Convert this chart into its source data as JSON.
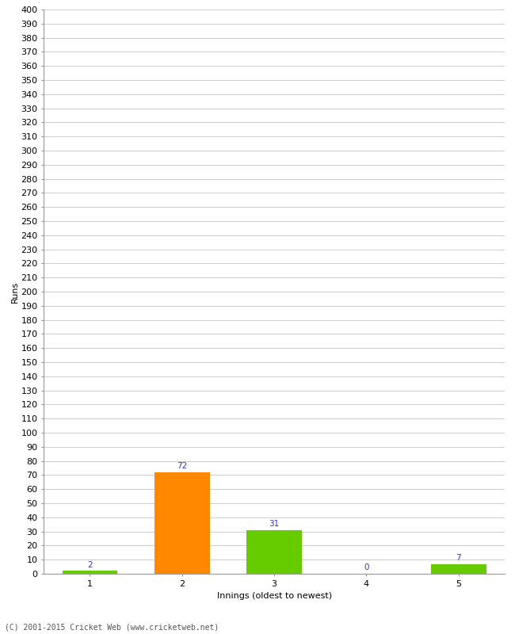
{
  "categories": [
    1,
    2,
    3,
    4,
    5
  ],
  "values": [
    2,
    72,
    31,
    0,
    7
  ],
  "bar_colors": [
    "#66cc00",
    "#ff8800",
    "#66cc00",
    "#66cc00",
    "#66cc00"
  ],
  "xlabel": "Innings (oldest to newest)",
  "ylabel": "Runs",
  "ylim": [
    0,
    400
  ],
  "background_color": "#ffffff",
  "grid_color": "#cccccc",
  "annotation_color": "#3333cc",
  "annotation_fontsize": 7.5,
  "axis_fontsize": 8,
  "ylabel_fontsize": 8,
  "xlabel_fontsize": 8,
  "footer": "(C) 2001-2015 Cricket Web (www.cricketweb.net)"
}
